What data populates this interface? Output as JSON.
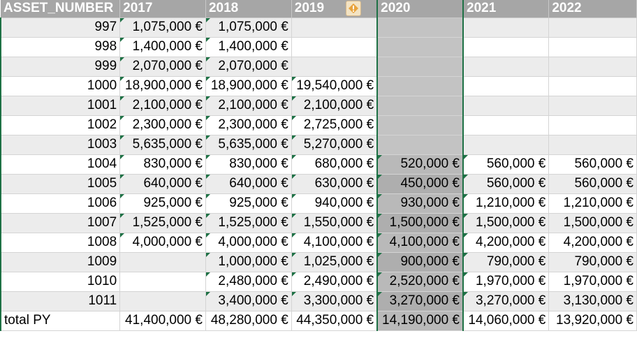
{
  "headers": [
    "ASSET_NUMBER",
    "2017",
    "2018",
    "2019",
    "2020",
    "2021",
    "2022"
  ],
  "rows": [
    {
      "asset": "997",
      "values": [
        "1,075,000 €",
        "1,075,000 €",
        "",
        "",
        "",
        ""
      ]
    },
    {
      "asset": "998",
      "values": [
        "1,400,000 €",
        "1,400,000 €",
        "",
        "",
        "",
        ""
      ]
    },
    {
      "asset": "999",
      "values": [
        "2,070,000 €",
        "2,070,000 €",
        "",
        "",
        "",
        ""
      ]
    },
    {
      "asset": "1000",
      "values": [
        "18,900,000 €",
        "18,900,000 €",
        "19,540,000 €",
        "",
        "",
        ""
      ]
    },
    {
      "asset": "1001",
      "values": [
        "2,100,000 €",
        "2,100,000 €",
        "2,100,000 €",
        "",
        "",
        ""
      ]
    },
    {
      "asset": "1002",
      "values": [
        "2,300,000 €",
        "2,300,000 €",
        "2,725,000 €",
        "",
        "",
        ""
      ]
    },
    {
      "asset": "1003",
      "values": [
        "5,635,000 €",
        "5,635,000 €",
        "5,270,000 €",
        "",
        "",
        ""
      ]
    },
    {
      "asset": "1004",
      "values": [
        "830,000 €",
        "830,000 €",
        "680,000 €",
        "520,000 €",
        "560,000 €",
        "560,000 €"
      ]
    },
    {
      "asset": "1005",
      "values": [
        "640,000 €",
        "640,000 €",
        "630,000 €",
        "450,000 €",
        "560,000 €",
        "560,000 €"
      ]
    },
    {
      "asset": "1006",
      "values": [
        "925,000 €",
        "925,000 €",
        "940,000 €",
        "930,000 €",
        "1,210,000 €",
        "1,210,000 €"
      ]
    },
    {
      "asset": "1007",
      "values": [
        "1,525,000 €",
        "1,525,000 €",
        "1,550,000 €",
        "1,500,000 €",
        "1,500,000 €",
        "1,500,000 €"
      ]
    },
    {
      "asset": "1008",
      "values": [
        "4,000,000 €",
        "4,000,000 €",
        "4,100,000 €",
        "4,100,000 €",
        "4,200,000 €",
        "4,200,000 €"
      ]
    },
    {
      "asset": "1009",
      "values": [
        "",
        "1,000,000 €",
        "1,025,000 €",
        "900,000 €",
        "790,000 €",
        "790,000 €"
      ]
    },
    {
      "asset": "1010",
      "values": [
        "",
        "2,480,000 €",
        "2,490,000 €",
        "2,520,000 €",
        "1,970,000 €",
        "1,970,000 €"
      ]
    },
    {
      "asset": "1011",
      "values": [
        "",
        "3,400,000 €",
        "3,300,000 €",
        "3,270,000 €",
        "3,270,000 €",
        "3,130,000 €"
      ]
    }
  ],
  "total": {
    "label": "total PY",
    "values": [
      "41,400,000 €",
      "48,280,000 €",
      "44,350,000 €",
      "14,190,000 €",
      "14,060,000 €",
      "13,920,000 €"
    ]
  },
  "colors": {
    "header_bg": "#a6a6a6",
    "band_bg": "#ececec",
    "selected_column_bg": "#b9b9b9",
    "selection_border": "#1e7145",
    "error_indicator": "#1e7145",
    "warning_icon": "#e8a33d"
  },
  "icons": {
    "warning": "warning-icon",
    "error_indicator": "error-indicator-triangle"
  }
}
